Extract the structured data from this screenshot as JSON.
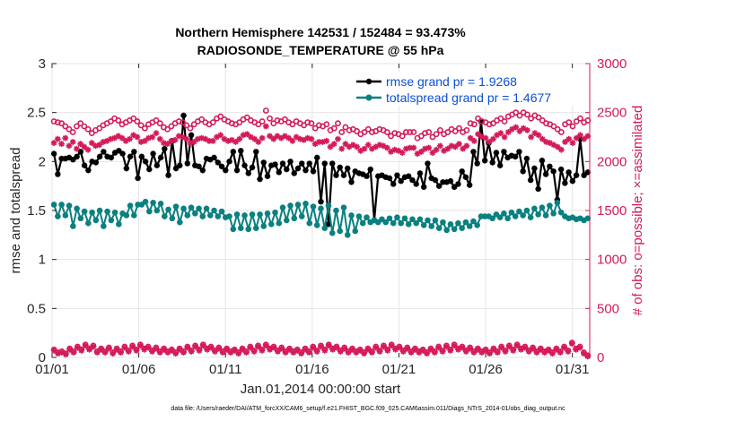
{
  "chart_data": {
    "type": "line",
    "title_line1": "Northern Hemisphere 142531 / 152484 = 93.473%",
    "title_line2": "RADIOSONDE_TEMPERATURE @ 55 hPa",
    "xlabel": "Jan.01,2014 00:00:00 start",
    "ylabel_left": "rmse and totalspread",
    "ylabel_right": "# of obs: o=possible; ×=assimilated",
    "footer": "data file: /Users/raeder/DAI/ATM_forcXX/CAM6_setup/f.e21.FHIST_BGC.f09_025.CAM6assim.011/Diags_NTrS_2014-01/obs_diag_output.nc",
    "x_ticks": [
      "01/01",
      "01/06",
      "01/11",
      "01/16",
      "01/21",
      "01/26",
      "01/31"
    ],
    "x_tick_days": [
      1,
      6,
      11,
      16,
      21,
      26,
      31
    ],
    "x_range_days": [
      1,
      32
    ],
    "left_ylim": [
      0,
      3
    ],
    "left_yticks": [
      "0",
      "0.5",
      "1",
      "1.5",
      "2",
      "2.5",
      "3"
    ],
    "right_ylim": [
      0,
      3000
    ],
    "right_yticks": [
      "0",
      "500",
      "1000",
      "1500",
      "2000",
      "2500",
      "3000"
    ],
    "colors": {
      "rmse": "#000000",
      "totalspread": "#0a8080",
      "obs": "#d41a5a",
      "legend_text": "#0b4fd6"
    },
    "series": [
      {
        "name": "rmse grand pr = 1.9268",
        "axis": "left",
        "style": "line-star",
        "color": "#000000",
        "y": [
          2.08,
          1.87,
          2.03,
          2.03,
          2.04,
          2.02,
          2.05,
          2.1,
          1.96,
          1.91,
          2.0,
          1.99,
          2.05,
          2.1,
          2.05,
          2.04,
          2.09,
          2.11,
          2.08,
          1.93,
          2.05,
          2.1,
          1.83,
          2.05,
          2.0,
          1.92,
          2.08,
          1.96,
          2.04,
          2.13,
          1.86,
          2.21,
          1.93,
          1.96,
          2.47,
          1.98,
          2.27,
          1.96,
          1.95,
          1.91,
          2.03,
          2.02,
          2.04,
          1.99,
          1.95,
          1.91,
          2.0,
          2.1,
          1.91,
          2.11,
          1.96,
          1.88,
          1.94,
          2.1,
          1.82,
          1.99,
          1.85,
          1.96,
          1.97,
          1.89,
          1.98,
          1.92,
          2.0,
          1.88,
          1.93,
          1.98,
          1.91,
          1.98,
          1.9,
          2.04,
          1.59,
          1.98,
          1.36,
          1.98,
          1.86,
          1.94,
          1.86,
          1.93,
          1.79,
          1.9,
          1.88,
          1.87,
          1.85,
          1.92,
          1.4,
          1.85,
          1.86,
          1.84,
          1.83,
          1.77,
          1.86,
          1.8,
          1.84,
          1.85,
          1.81,
          1.77,
          1.88,
          1.74,
          1.98,
          1.83,
          1.81,
          1.75,
          1.79,
          1.79,
          1.8,
          1.74,
          1.77,
          1.9,
          1.84,
          1.76,
          2.1,
          1.98,
          2.41,
          2.01,
          2.19,
          1.99,
          2.09,
          1.96,
          2.1,
          2.04,
          2.06,
          2.05,
          2.1,
          1.9,
          2.03,
          1.81,
          1.93,
          1.72,
          2.01,
          1.87,
          1.95,
          1.9,
          1.61,
          1.92,
          1.78,
          1.89,
          1.8,
          1.86,
          2.23,
          1.86,
          1.89
        ]
      },
      {
        "name": "totalspread grand pr = 1.4677",
        "axis": "left",
        "style": "line-dot",
        "color": "#0a8080",
        "y": [
          1.56,
          1.44,
          1.56,
          1.45,
          1.55,
          1.34,
          1.52,
          1.42,
          1.49,
          1.37,
          1.48,
          1.4,
          1.5,
          1.34,
          1.49,
          1.4,
          1.48,
          1.36,
          1.47,
          1.45,
          1.55,
          1.45,
          1.56,
          1.56,
          1.59,
          1.49,
          1.58,
          1.5,
          1.57,
          1.44,
          1.51,
          1.42,
          1.54,
          1.38,
          1.52,
          1.45,
          1.53,
          1.47,
          1.52,
          1.44,
          1.52,
          1.45,
          1.5,
          1.44,
          1.49,
          1.43,
          1.44,
          1.31,
          1.46,
          1.32,
          1.45,
          1.31,
          1.46,
          1.32,
          1.46,
          1.34,
          1.47,
          1.36,
          1.48,
          1.37,
          1.53,
          1.4,
          1.55,
          1.42,
          1.56,
          1.44,
          1.57,
          1.37,
          1.54,
          1.35,
          1.52,
          1.32,
          1.55,
          1.27,
          1.5,
          1.29,
          1.53,
          1.25,
          1.45,
          1.29,
          1.44,
          1.37,
          1.43,
          1.38,
          1.4,
          1.38,
          1.41,
          1.38,
          1.42,
          1.37,
          1.43,
          1.37,
          1.42,
          1.36,
          1.41,
          1.37,
          1.41,
          1.35,
          1.4,
          1.34,
          1.4,
          1.32,
          1.38,
          1.3,
          1.36,
          1.31,
          1.37,
          1.32,
          1.38,
          1.34,
          1.39,
          1.35,
          1.44,
          1.44,
          1.44,
          1.42,
          1.46,
          1.43,
          1.47,
          1.42,
          1.48,
          1.44,
          1.49,
          1.45,
          1.5,
          1.43,
          1.52,
          1.46,
          1.53,
          1.45,
          1.55,
          1.47,
          1.58,
          1.48,
          1.44,
          1.42,
          1.43,
          1.41,
          1.42,
          1.4,
          1.42
        ]
      },
      {
        "name": "possible",
        "axis": "right",
        "style": "marker-circle",
        "color": "#d41a5a",
        "y": [
          2410,
          2400,
          2390,
          2360,
          2330,
          2300,
          2360,
          2390,
          2360,
          2330,
          2290,
          2320,
          2340,
          2370,
          2390,
          2410,
          2440,
          2420,
          2380,
          2400,
          2420,
          2440,
          2410,
          2370,
          2340,
          2380,
          2400,
          2420,
          2390,
          2350,
          2330,
          2360,
          2390,
          2410,
          2400,
          2370,
          2340,
          2380,
          2410,
          2430,
          2400,
          2380,
          2400,
          2440,
          2460,
          2430,
          2410,
          2390,
          2380,
          2400,
          2430,
          2450,
          2420,
          2400,
          2380,
          2410,
          2520,
          2440,
          2390,
          2420,
          2410,
          2430,
          2400,
          2380,
          2410,
          2390,
          2370,
          2400,
          2390,
          2340,
          2370,
          2360,
          2380,
          2320,
          2340,
          2390,
          2300,
          2350,
          2320,
          2330,
          2310,
          2280,
          2300,
          2330,
          2300,
          2310,
          2330,
          2320,
          2300,
          2260,
          2290,
          2280,
          2260,
          2300,
          2300,
          2300,
          2240,
          2260,
          2290,
          2300,
          2250,
          2280,
          2320,
          2280,
          2300,
          2330,
          2310,
          2340,
          2300,
          2320,
          2390,
          2380,
          2440,
          2410,
          2400,
          2380,
          2390,
          2420,
          2440,
          2410,
          2460,
          2480,
          2500,
          2470,
          2500,
          2480,
          2440,
          2470,
          2450,
          2420,
          2390,
          2380,
          2360,
          2330,
          2300,
          2380,
          2400,
          2360,
          2410,
          2440,
          2400,
          2420
        ]
      },
      {
        "name": "assimilated",
        "axis": "right",
        "style": "marker-star",
        "color": "#d41a5a",
        "y": [
          2190,
          2230,
          2180,
          2240,
          2160,
          2200,
          2130,
          2180,
          2150,
          2120,
          2190,
          2160,
          2170,
          2200,
          2210,
          2230,
          2240,
          2260,
          2240,
          2210,
          2230,
          2270,
          2250,
          2200,
          2210,
          2240,
          2250,
          2290,
          2230,
          2190,
          2180,
          2210,
          2220,
          2260,
          2250,
          2230,
          2190,
          2200,
          2230,
          2240,
          2230,
          2210,
          2210,
          2250,
          2270,
          2230,
          2210,
          2220,
          2200,
          2230,
          2270,
          2280,
          2250,
          2230,
          2200,
          2240,
          2360,
          2260,
          2230,
          2260,
          2240,
          2260,
          2240,
          2210,
          2250,
          2230,
          2220,
          2240,
          2230,
          2180,
          2200,
          2200,
          2210,
          2150,
          2180,
          2230,
          2130,
          2180,
          2150,
          2170,
          2150,
          2110,
          2130,
          2170,
          2130,
          2150,
          2170,
          2160,
          2140,
          2100,
          2120,
          2110,
          2090,
          2130,
          2140,
          2140,
          2080,
          2100,
          2130,
          2140,
          2090,
          2120,
          2160,
          2110,
          2130,
          2160,
          2150,
          2180,
          2130,
          2160,
          2240,
          2210,
          2280,
          2250,
          2240,
          2200,
          2230,
          2270,
          2290,
          2250,
          2300,
          2330,
          2350,
          2310,
          2340,
          2320,
          2250,
          2290,
          2270,
          2230,
          2200,
          2190,
          2170,
          2150,
          2120,
          2200,
          2230,
          2190,
          2240,
          2270,
          2230,
          2260
        ]
      },
      {
        "name": "possible (bottom)",
        "axis": "right",
        "style": "marker-circle",
        "color": "#d41a5a",
        "y": [
          80,
          50,
          60,
          40,
          90,
          60,
          110,
          80,
          130,
          90,
          120,
          60,
          90,
          60,
          100,
          50,
          90,
          60,
          110,
          70,
          120,
          80,
          130,
          90,
          110,
          70,
          100,
          60,
          90,
          60,
          80,
          50,
          90,
          60,
          110,
          70,
          120,
          80,
          130,
          90,
          110,
          70,
          100,
          60,
          90,
          60,
          80,
          50,
          90,
          60,
          110,
          70,
          120,
          80,
          130,
          90,
          110,
          70,
          100,
          60,
          90,
          60,
          80,
          50,
          90,
          60,
          110,
          70,
          120,
          80,
          130,
          90,
          110,
          70,
          100,
          60,
          90,
          60,
          80,
          50,
          90,
          60,
          110,
          70,
          120,
          80,
          130,
          90,
          110,
          70,
          100,
          60,
          90,
          60,
          80,
          50,
          90,
          60,
          110,
          70,
          120,
          80,
          130,
          90,
          110,
          70,
          100,
          60,
          90,
          60,
          80,
          50,
          90,
          60,
          110,
          70,
          120,
          80,
          130,
          90,
          110,
          70,
          100,
          60,
          90,
          60,
          80,
          50,
          90,
          60,
          110,
          70,
          150,
          90,
          110,
          50,
          20
        ]
      },
      {
        "name": "assimilated (bottom)",
        "axis": "right",
        "style": "marker-star",
        "color": "#d41a5a",
        "y": [
          70,
          40,
          50,
          30,
          80,
          50,
          100,
          70,
          120,
          80,
          110,
          50,
          80,
          50,
          90,
          40,
          80,
          50,
          100,
          60,
          110,
          70,
          120,
          80,
          100,
          60,
          90,
          50,
          80,
          50,
          70,
          40,
          80,
          50,
          100,
          60,
          110,
          70,
          120,
          80,
          100,
          60,
          90,
          50,
          80,
          50,
          70,
          40,
          80,
          50,
          100,
          60,
          110,
          70,
          120,
          80,
          100,
          60,
          90,
          50,
          80,
          50,
          70,
          40,
          80,
          50,
          100,
          60,
          110,
          70,
          120,
          80,
          100,
          60,
          90,
          50,
          80,
          50,
          70,
          40,
          80,
          50,
          100,
          60,
          110,
          70,
          120,
          80,
          100,
          60,
          90,
          50,
          80,
          50,
          70,
          40,
          80,
          50,
          100,
          60,
          110,
          70,
          120,
          80,
          100,
          60,
          90,
          50,
          80,
          50,
          70,
          40,
          80,
          50,
          100,
          60,
          110,
          70,
          120,
          80,
          100,
          60,
          90,
          50,
          80,
          50,
          70,
          40,
          80,
          50,
          100,
          60,
          140,
          80,
          100,
          40,
          10
        ]
      }
    ],
    "legend": {
      "placement": "top-right",
      "entries": [
        "rmse grand pr = 1.9268",
        "totalspread grand pr = 1.4677"
      ]
    }
  }
}
